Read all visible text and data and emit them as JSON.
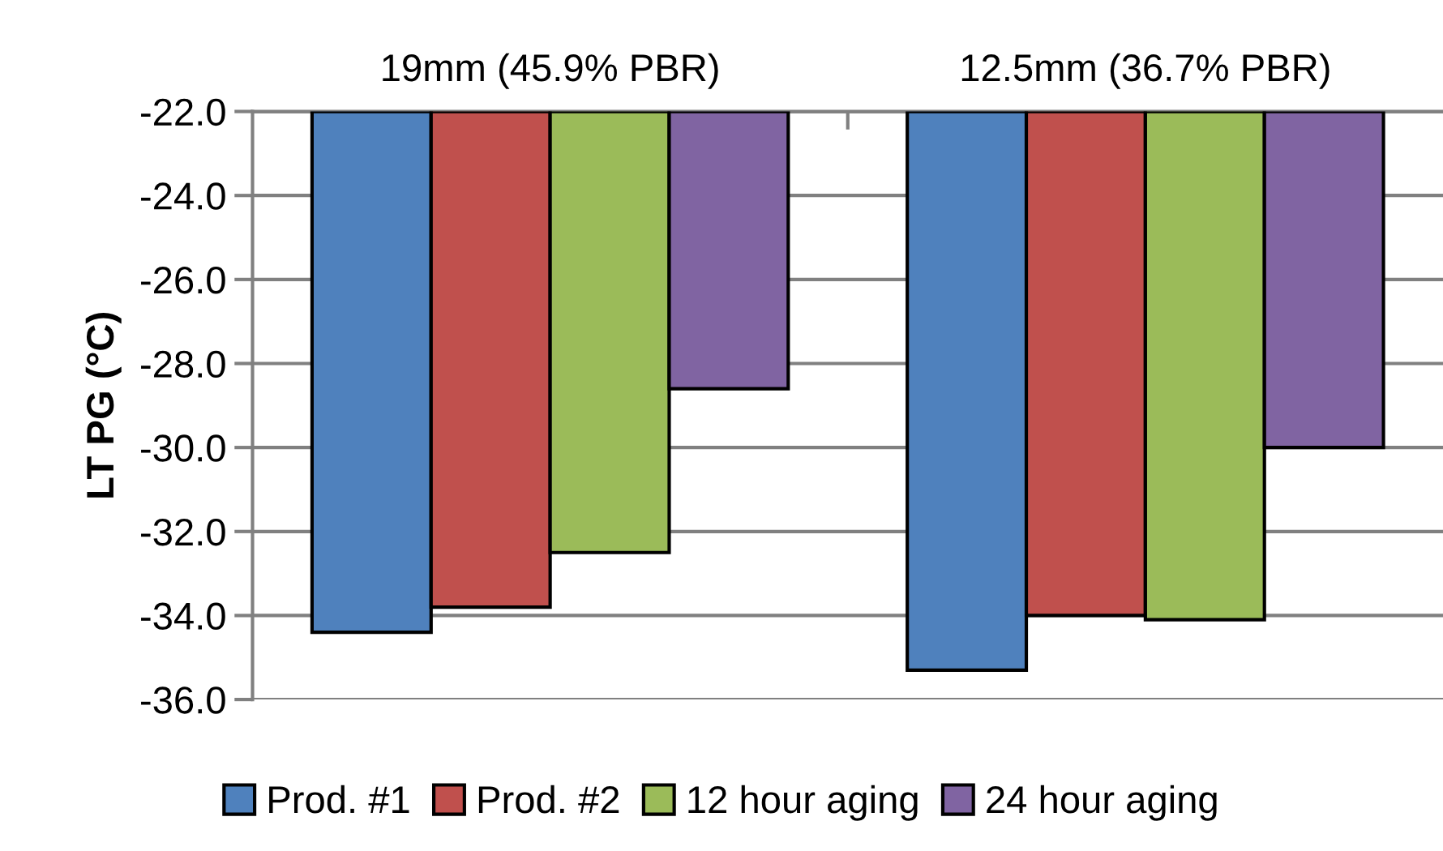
{
  "chart_data": {
    "type": "bar",
    "ylabel": "LT PG (°C)",
    "categories": [
      "19mm (45.9% PBR)",
      "12.5mm (36.7% PBR)"
    ],
    "series": [
      {
        "name": "Prod. #1",
        "color": "#4f81bd",
        "values": [
          -34.4,
          -35.3
        ]
      },
      {
        "name": "Prod. #2",
        "color": "#c0504d",
        "values": [
          -33.8,
          -34.0
        ]
      },
      {
        "name": "12 hour aging",
        "color": "#9bbb59",
        "values": [
          -32.5,
          -34.1
        ]
      },
      {
        "name": "24 hour aging",
        "color": "#8064a2",
        "values": [
          -28.6,
          -30.0
        ]
      }
    ],
    "ylim": [
      -36.0,
      -22.0
    ],
    "yticks": [
      {
        "value": -36,
        "label": "-36.0"
      },
      {
        "value": -34,
        "label": "-34.0"
      },
      {
        "value": -32,
        "label": "-32.0"
      },
      {
        "value": -30,
        "label": "-30.0"
      },
      {
        "value": -28,
        "label": "-28.0"
      },
      {
        "value": -26,
        "label": "-26.0"
      },
      {
        "value": -24,
        "label": "-24.0"
      },
      {
        "value": -22,
        "label": "-22.0"
      }
    ],
    "grid": "y",
    "legend": "bottom"
  }
}
